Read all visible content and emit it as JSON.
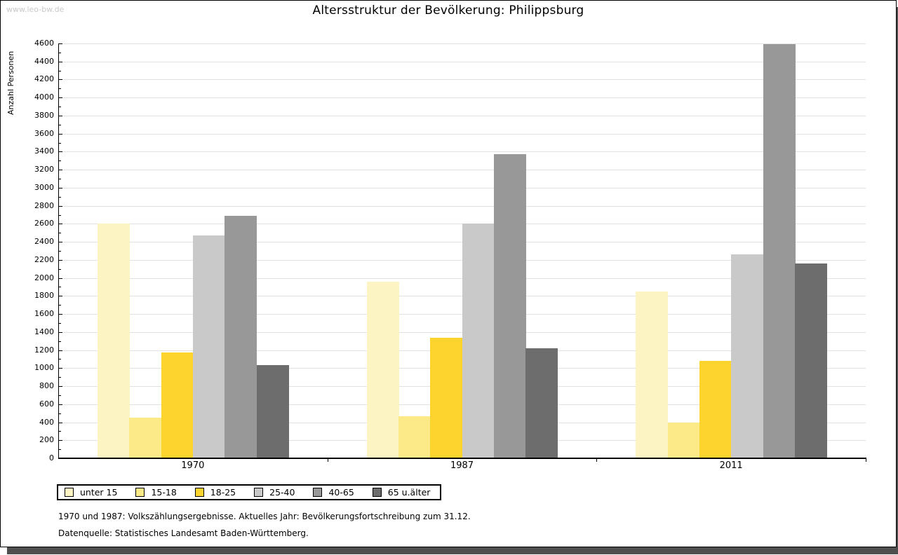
{
  "watermark": "www.leo-bw.de",
  "title": "Altersstruktur der Bevölkerung: Philippsburg",
  "footer": {
    "line1": "1970 und 1987: Volkszählungsergebnisse. Aktuelles Jahr: Bevölkerungsfortschreibung zum 31.12.",
    "line2": "Datenquelle: Statistisches Landesamt Baden-Württemberg."
  },
  "chart_data": {
    "type": "bar",
    "title": "Altersstruktur der Bevölkerung: Philippsburg",
    "xlabel": "",
    "ylabel": "Anzahl Personen",
    "categories": [
      "1970",
      "1987",
      "2011"
    ],
    "series": [
      {
        "name": "unter 15",
        "color": "#fcf4c3",
        "values": [
          2600,
          1960,
          1850
        ]
      },
      {
        "name": "15-18",
        "color": "#fce987",
        "values": [
          450,
          470,
          400
        ]
      },
      {
        "name": "18-25",
        "color": "#fcd42d",
        "values": [
          1170,
          1340,
          1080
        ]
      },
      {
        "name": "25-40",
        "color": "#c9c9c9",
        "values": [
          2470,
          2600,
          2260
        ]
      },
      {
        "name": "40-65",
        "color": "#989898",
        "values": [
          2690,
          3370,
          4590
        ]
      },
      {
        "name": "65 u.älter",
        "color": "#6d6d6d",
        "values": [
          1030,
          1220,
          2160
        ]
      }
    ],
    "ylim": [
      0,
      4600
    ],
    "ytick_step": 200,
    "minor_ytick_step": 100,
    "grid": true,
    "gridline_color": "#e1e1e1",
    "legend_position": "bottom-left"
  }
}
